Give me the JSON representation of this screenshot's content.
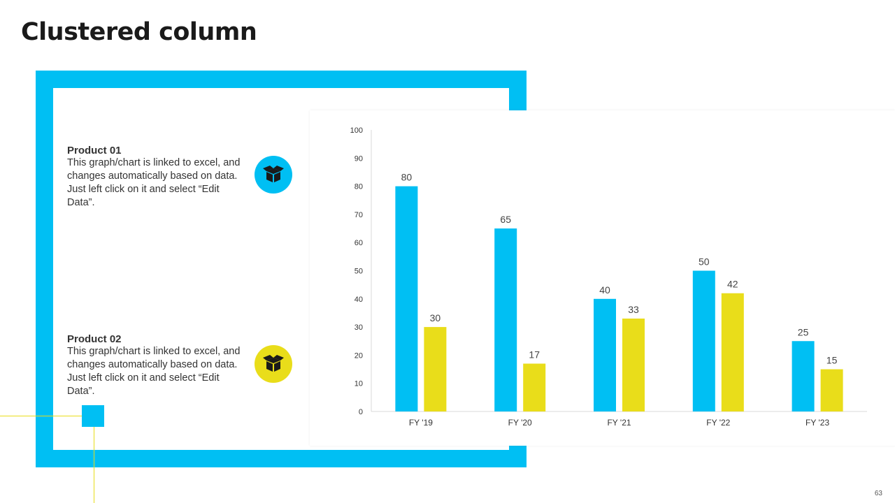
{
  "slide": {
    "title": "Clustered column",
    "page_number": "63"
  },
  "products": [
    {
      "name": "Product 01",
      "description": "This graph/chart is linked to excel, and changes automatically based on data. Just left click on it and select “Edit Data”.",
      "icon": "box-icon",
      "color": "#00bff3"
    },
    {
      "name": "Product 02",
      "description": "This graph/chart is linked to excel, and changes automatically based on data. Just left click on it and select “Edit Data”.",
      "icon": "box-icon",
      "color": "#e9dd1a"
    }
  ],
  "colors": {
    "accent_blue": "#00bff3",
    "accent_yellow": "#e9dd1a"
  },
  "chart_data": {
    "type": "bar",
    "title": "",
    "xlabel": "",
    "ylabel": "",
    "categories": [
      "FY '19",
      "FY '20",
      "FY '21",
      "FY '22",
      "FY '23"
    ],
    "series": [
      {
        "values": [
          80,
          65,
          40,
          50,
          25
        ],
        "color": "#00bff3"
      },
      {
        "values": [
          30,
          17,
          33,
          42,
          15
        ],
        "color": "#e9dd1a"
      }
    ],
    "ylim": [
      0,
      100
    ],
    "yticks": [
      0,
      10,
      20,
      30,
      40,
      50,
      60,
      70,
      80,
      90,
      100
    ],
    "grid": false,
    "legend": "none",
    "data_labels": true
  }
}
